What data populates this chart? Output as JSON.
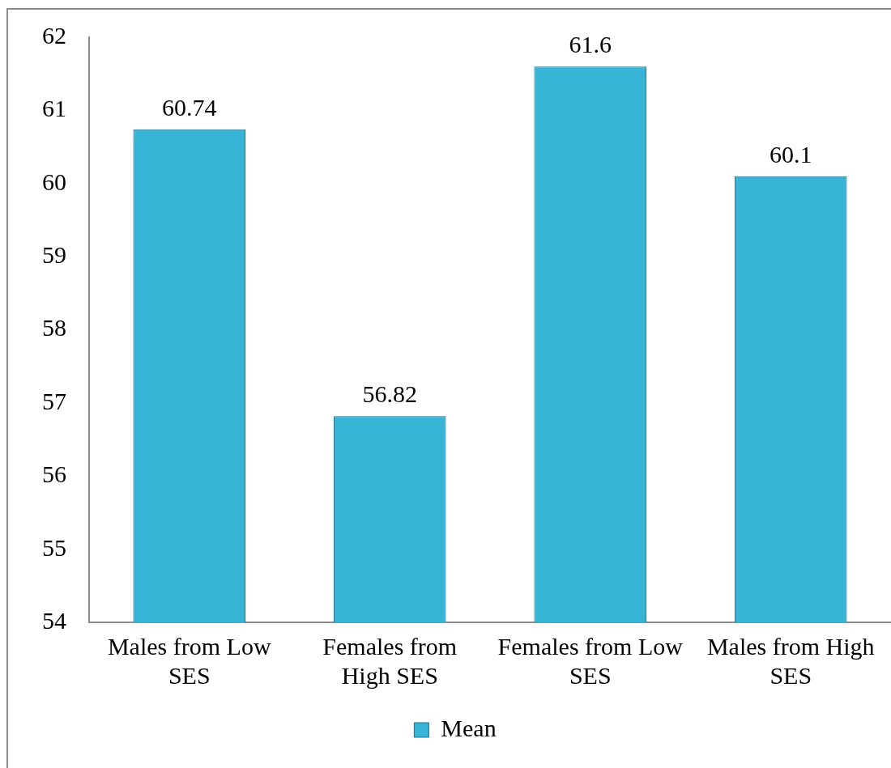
{
  "chart_data": {
    "type": "bar",
    "categories": [
      "Males from Low SES",
      "Females from High SES",
      "Females from Low SES",
      "Males from High SES"
    ],
    "series": [
      {
        "name": "Mean",
        "color": "#38b4d6",
        "values": [
          60.74,
          56.82,
          61.6,
          60.1
        ]
      }
    ],
    "ylim": [
      54,
      62
    ],
    "yticks": [
      54,
      55,
      56,
      57,
      58,
      59,
      60,
      61,
      62
    ],
    "data_labels": true,
    "legend": "bottom"
  }
}
